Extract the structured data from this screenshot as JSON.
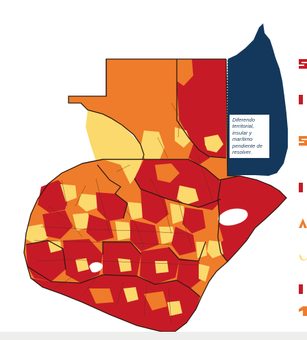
{
  "map": {
    "annotation": "Diferendo territorial, insular y marítimo pendiente de resolver.",
    "colors": {
      "yellow": "#fbd96d",
      "orange": "#ee7c2a",
      "red": "#c61b26",
      "belize": "#13385c",
      "text_accent": "#c61b26"
    },
    "categories": [
      {
        "color": "#fbd96d"
      },
      {
        "color": "#ee7c2a"
      },
      {
        "color": "#c61b26"
      }
    ]
  }
}
